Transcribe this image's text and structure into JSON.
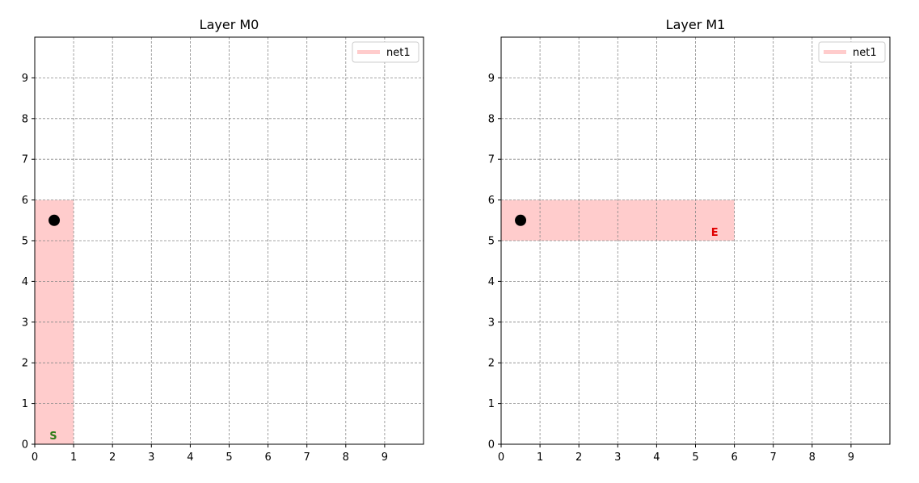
{
  "chart_data": [
    {
      "type": "grid-layout",
      "title": "Layer M0",
      "xlim": [
        0,
        10
      ],
      "ylim": [
        0,
        10
      ],
      "xticks": [
        "0",
        "1",
        "2",
        "3",
        "4",
        "5",
        "6",
        "7",
        "8",
        "9"
      ],
      "yticks": [
        "0",
        "1",
        "2",
        "3",
        "4",
        "5",
        "6",
        "7",
        "8",
        "9"
      ],
      "grid": true,
      "legend": {
        "placement": "top-right",
        "entries": [
          {
            "name": "net1",
            "color": "#ffcccc"
          }
        ]
      },
      "rects": [
        {
          "net": "net1",
          "x": [
            0,
            1
          ],
          "y": [
            0,
            6
          ],
          "color": "#ffcccc"
        }
      ],
      "points": [
        {
          "x": 0.5,
          "y": 5.5,
          "color": "#000000"
        }
      ],
      "labels": [
        {
          "text": "S",
          "x": 0.38,
          "y": 0.12,
          "color": "#2e7d18"
        }
      ]
    },
    {
      "type": "grid-layout",
      "title": "Layer M1",
      "xlim": [
        0,
        10
      ],
      "ylim": [
        0,
        10
      ],
      "xticks": [
        "0",
        "1",
        "2",
        "3",
        "4",
        "5",
        "6",
        "7",
        "8",
        "9"
      ],
      "yticks": [
        "0",
        "1",
        "2",
        "3",
        "4",
        "5",
        "6",
        "7",
        "8",
        "9"
      ],
      "grid": true,
      "legend": {
        "placement": "top-right",
        "entries": [
          {
            "name": "net1",
            "color": "#ffcccc"
          }
        ]
      },
      "rects": [
        {
          "net": "net1",
          "x": [
            0,
            6
          ],
          "y": [
            5,
            6
          ],
          "color": "#ffcccc"
        }
      ],
      "points": [
        {
          "x": 0.5,
          "y": 5.5,
          "color": "#000000"
        }
      ],
      "labels": [
        {
          "text": "E",
          "x": 5.4,
          "y": 5.12,
          "color": "#e00000"
        }
      ]
    }
  ]
}
